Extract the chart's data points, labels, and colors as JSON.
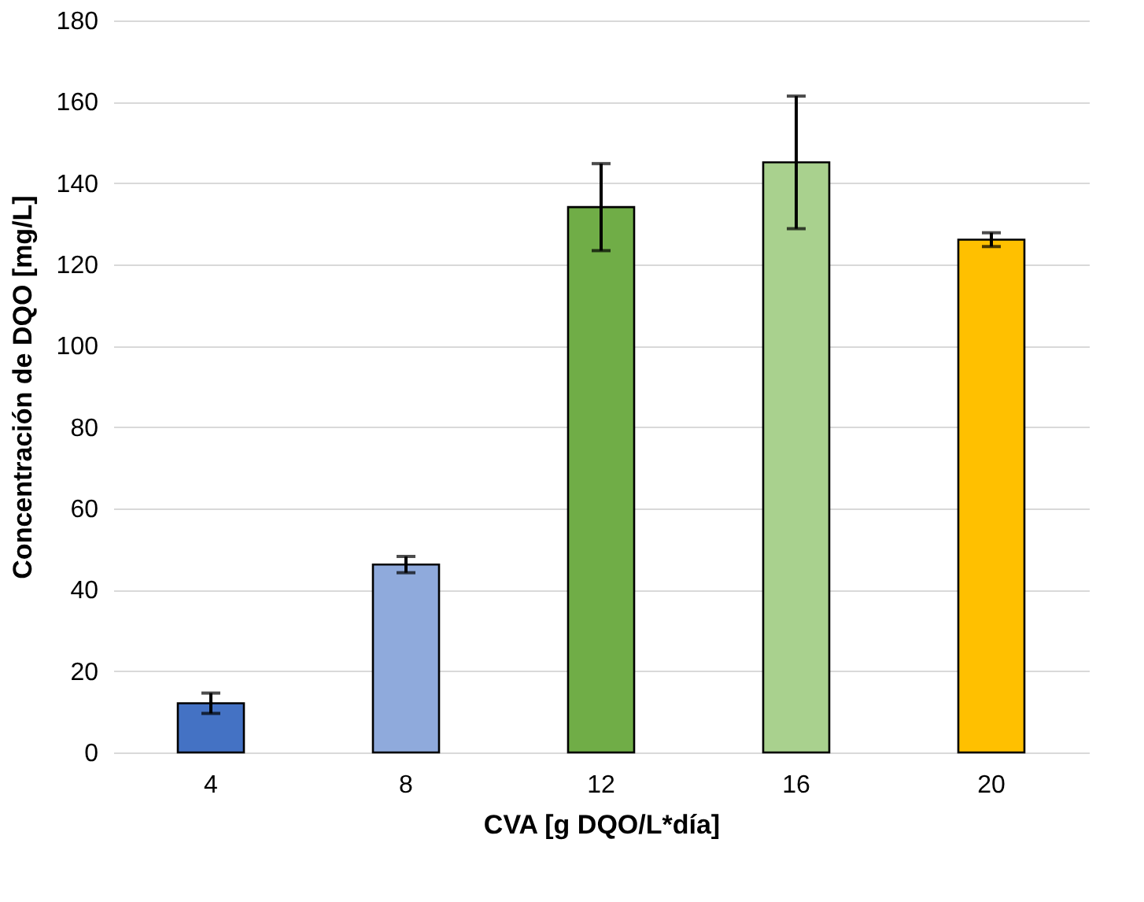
{
  "chart_data": {
    "type": "bar",
    "xlabel": "CVA [g DQO/L*día]",
    "ylabel": "Concentración de DQO [mg/L]",
    "categories": [
      "4",
      "8",
      "12",
      "16",
      "20"
    ],
    "values": [
      12.1,
      46.2,
      134.1,
      145.1,
      126.1
    ],
    "errors": [
      2.5,
      2,
      10.7,
      16.3,
      1.7
    ],
    "colors": [
      "#4472c4",
      "#8faadc",
      "#70ad47",
      "#a9d18e",
      "#ffc000"
    ],
    "ylim": [
      0,
      180
    ],
    "yticks": [
      0,
      20,
      40,
      60,
      80,
      100,
      120,
      140,
      160,
      180
    ],
    "grid": "y"
  }
}
